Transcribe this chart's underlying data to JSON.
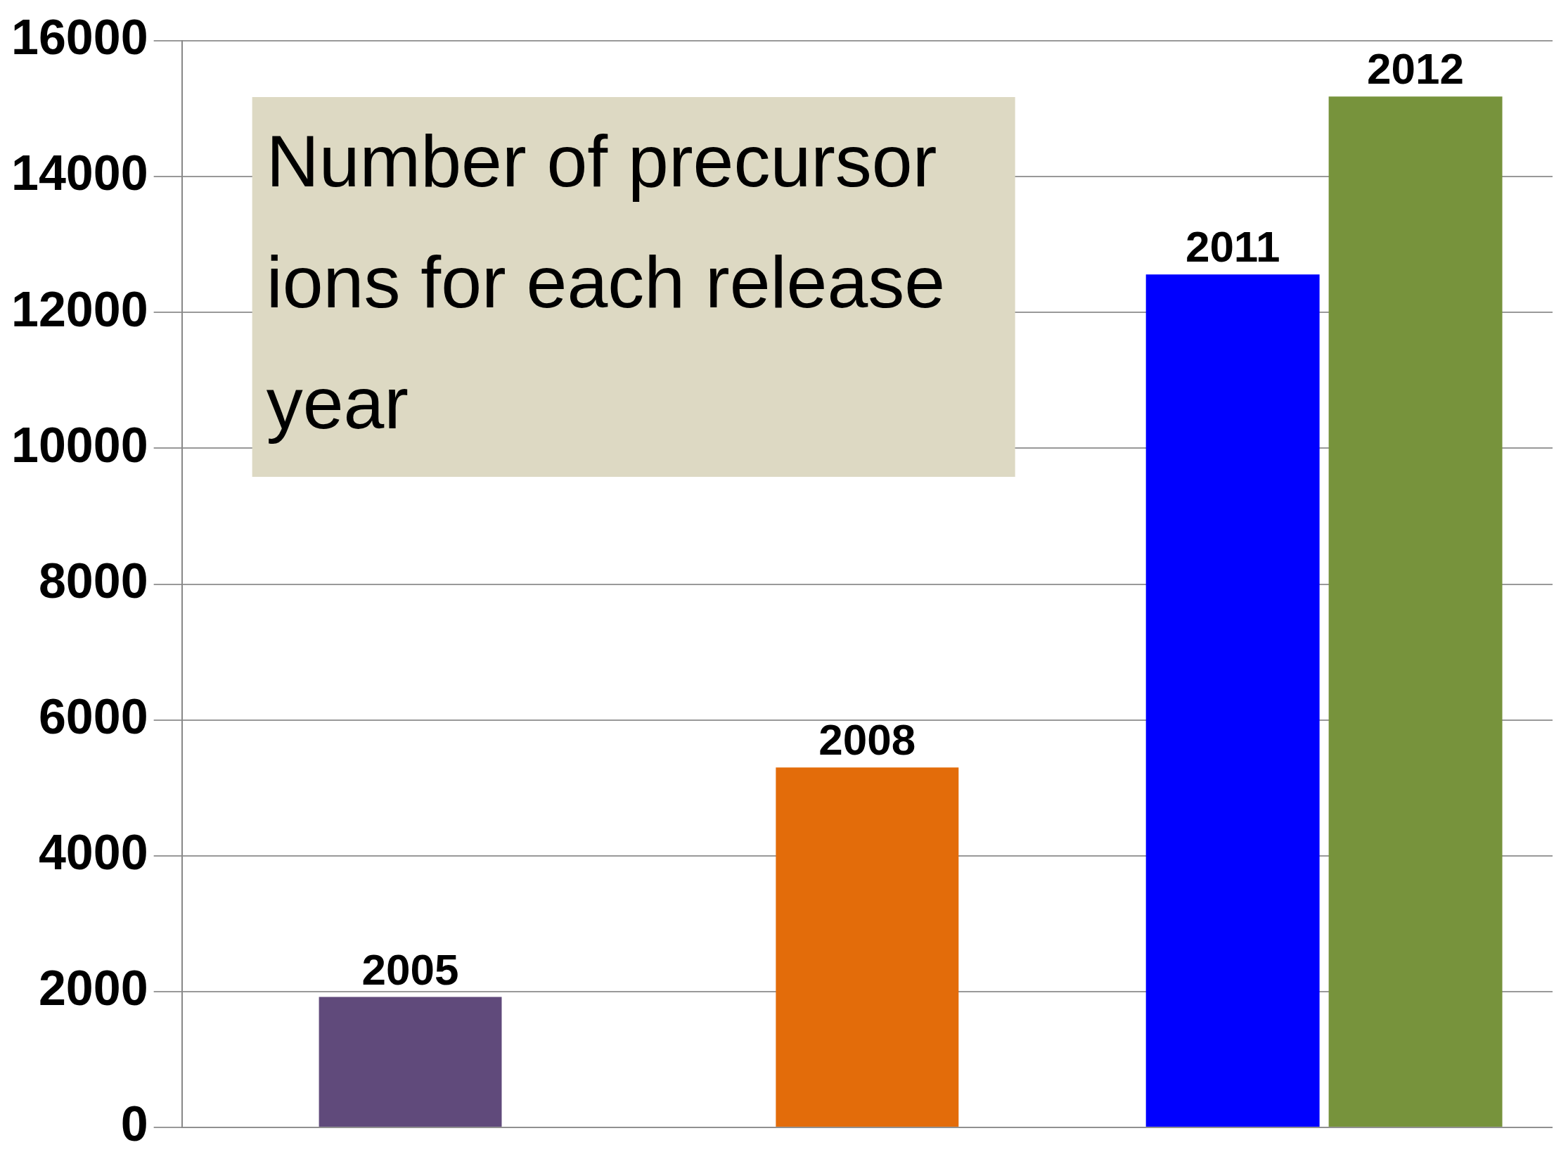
{
  "chart_data": {
    "type": "bar",
    "title": "Number of precursor ions for each release year",
    "categories": [
      null,
      null,
      null
    ],
    "series": [
      {
        "name": "2005",
        "color": "#604a7b",
        "values": [
          1920,
          null,
          null
        ]
      },
      {
        "name": "2008",
        "color": "#e36c0a",
        "values": [
          null,
          5300,
          null
        ]
      },
      {
        "name": "2011",
        "color": "#0000ff",
        "values": [
          null,
          null,
          12560
        ]
      },
      {
        "name": "2012",
        "color": "#77933c",
        "values": [
          null,
          null,
          15180
        ]
      }
    ],
    "ylim": [
      0,
      16000
    ],
    "yticks": [
      0,
      2000,
      4000,
      6000,
      8000,
      10000,
      12000,
      14000,
      16000
    ],
    "grid": "y",
    "legend": false
  }
}
